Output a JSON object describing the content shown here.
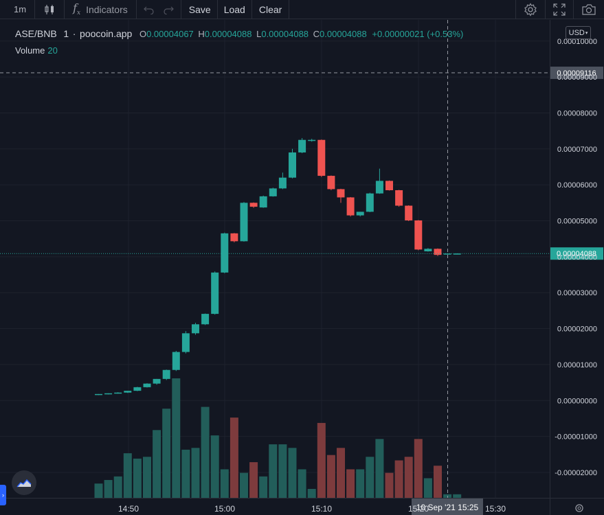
{
  "toolbar": {
    "interval": "1m",
    "indicators_label": "Indicators",
    "save_label": "Save",
    "load_label": "Load",
    "clear_label": "Clear"
  },
  "legend": {
    "symbol": "ASE/BNB",
    "interval": "1",
    "source": "poocoin.app",
    "o_label": "O",
    "o_value": "0.00004067",
    "h_label": "H",
    "h_value": "0.00004088",
    "l_label": "L",
    "l_value": "0.00004088",
    "c_label": "C",
    "c_value": "0.00004088",
    "change": "+0.00000021 (+0.53%)"
  },
  "volume_legend": {
    "label": "Volume",
    "length": "20"
  },
  "currency": "USD",
  "crosshair": {
    "price_label": "0.00009116",
    "time_label_date": "10 Sep '21",
    "time_label_time": "15:25"
  },
  "last_price_label": "0.00004088",
  "colors": {
    "up": "#26a69a",
    "down": "#ef5350",
    "vol_up": "#225e5a",
    "vol_down": "#7d3b3d",
    "bg": "#131722",
    "grid": "#1e222d"
  },
  "chart_data": {
    "type": "candlestick",
    "price_axis": {
      "ticks": [
        "0.00010000",
        "0.00009000",
        "0.00008000",
        "0.00007000",
        "0.00006000",
        "0.00005000",
        "0.00004000",
        "0.00003000",
        "0.00002000",
        "0.00001000",
        "0.00000000",
        "-0.00001000",
        "-0.00002000"
      ],
      "range": [
        -2.7e-05,
        0.0001
      ]
    },
    "time_axis": {
      "ticks": [
        "14:50",
        "15:00",
        "15:10",
        "15:20",
        "15:30"
      ]
    },
    "candles": [
      {
        "o": 1.6e-06,
        "h": 1.8e-06,
        "l": 1.5e-06,
        "c": 1.8e-06
      },
      {
        "o": 1.8e-06,
        "h": 2e-06,
        "l": 1.7e-06,
        "c": 2e-06
      },
      {
        "o": 2e-06,
        "h": 2.3e-06,
        "l": 1.9e-06,
        "c": 2.2e-06
      },
      {
        "o": 2.2e-06,
        "h": 2.7e-06,
        "l": 2.1e-06,
        "c": 2.7e-06
      },
      {
        "o": 2.7e-06,
        "h": 3.8e-06,
        "l": 2.6e-06,
        "c": 3.7e-06
      },
      {
        "o": 3.7e-06,
        "h": 4.8e-06,
        "l": 3.6e-06,
        "c": 4.7e-06
      },
      {
        "o": 4.7e-06,
        "h": 6e-06,
        "l": 4.4e-06,
        "c": 6e-06
      },
      {
        "o": 6e-06,
        "h": 8.6e-06,
        "l": 5.7e-06,
        "c": 8.5e-06
      },
      {
        "o": 8.5e-06,
        "h": 1.38e-05,
        "l": 8.2e-06,
        "c": 1.35e-05
      },
      {
        "o": 1.35e-05,
        "h": 1.93e-05,
        "l": 1.31e-05,
        "c": 1.87e-05
      },
      {
        "o": 1.87e-05,
        "h": 2.16e-05,
        "l": 1.83e-05,
        "c": 2.12e-05
      },
      {
        "o": 2.12e-05,
        "h": 2.42e-05,
        "l": 2.1e-05,
        "c": 2.41e-05
      },
      {
        "o": 2.41e-05,
        "h": 3.59e-05,
        "l": 2.39e-05,
        "c": 3.56e-05
      },
      {
        "o": 3.56e-05,
        "h": 4.67e-05,
        "l": 3.54e-05,
        "c": 4.65e-05
      },
      {
        "o": 4.65e-05,
        "h": 4.66e-05,
        "l": 4.4e-05,
        "c": 4.43e-05
      },
      {
        "o": 4.43e-05,
        "h": 5.52e-05,
        "l": 4.42e-05,
        "c": 5.5e-05
      },
      {
        "o": 5.5e-05,
        "h": 5.51e-05,
        "l": 5.36e-05,
        "c": 5.39e-05
      },
      {
        "o": 5.37e-05,
        "h": 5.7e-05,
        "l": 5.36e-05,
        "c": 5.68e-05
      },
      {
        "o": 5.68e-05,
        "h": 5.92e-05,
        "l": 5.67e-05,
        "c": 5.9e-05
      },
      {
        "o": 5.9e-05,
        "h": 6.34e-05,
        "l": 5.88e-05,
        "c": 6.2e-05
      },
      {
        "o": 6.2e-05,
        "h": 7e-05,
        "l": 6.18e-05,
        "c": 6.9e-05
      },
      {
        "o": 6.9e-05,
        "h": 7.3e-05,
        "l": 6.88e-05,
        "c": 7.25e-05
      },
      {
        "o": 7.22e-05,
        "h": 7.28e-05,
        "l": 7.2e-05,
        "c": 7.25e-05
      },
      {
        "o": 7.25e-05,
        "h": 7.26e-05,
        "l": 6.22e-05,
        "c": 6.25e-05
      },
      {
        "o": 6.25e-05,
        "h": 6.26e-05,
        "l": 5.85e-05,
        "c": 5.88e-05
      },
      {
        "o": 5.88e-05,
        "h": 5.89e-05,
        "l": 5.5e-05,
        "c": 5.65e-05
      },
      {
        "o": 5.65e-05,
        "h": 5.66e-05,
        "l": 5.12e-05,
        "c": 5.15e-05
      },
      {
        "o": 5.15e-05,
        "h": 5.25e-05,
        "l": 5.12e-05,
        "c": 5.25e-05
      },
      {
        "o": 5.25e-05,
        "h": 5.78e-05,
        "l": 5.24e-05,
        "c": 5.76e-05
      },
      {
        "o": 5.76e-05,
        "h": 6.45e-05,
        "l": 5.75e-05,
        "c": 6.11e-05
      },
      {
        "o": 6.11e-05,
        "h": 6.12e-05,
        "l": 5.84e-05,
        "c": 5.85e-05
      },
      {
        "o": 5.85e-05,
        "h": 5.86e-05,
        "l": 5.39e-05,
        "c": 5.42e-05
      },
      {
        "o": 5.42e-05,
        "h": 5.43e-05,
        "l": 4.99e-05,
        "c": 5.01e-05
      },
      {
        "o": 5.01e-05,
        "h": 5.02e-05,
        "l": 4.18e-05,
        "c": 4.2e-05
      },
      {
        "o": 4.15e-05,
        "h": 4.24e-05,
        "l": 4.14e-05,
        "c": 4.22e-05
      },
      {
        "o": 4.22e-05,
        "h": 4.23e-05,
        "l": 4.02e-05,
        "c": 4.05e-05
      },
      {
        "o": 4.067e-05,
        "h": 4.088e-05,
        "l": 4.088e-05,
        "c": 4.088e-05
      },
      {
        "o": 4.075e-05,
        "h": 4.09e-05,
        "l": 4.07e-05,
        "c": 4.088e-05
      }
    ],
    "volume": [
      8,
      10,
      12,
      25,
      22,
      23,
      38,
      50,
      67,
      27,
      28,
      51,
      35,
      16,
      45,
      14,
      20,
      12,
      30,
      30,
      28,
      16,
      5,
      42,
      24,
      28,
      16,
      16,
      23,
      33,
      14,
      21,
      23,
      33,
      11,
      18,
      2,
      2
    ],
    "volume_max": 67
  }
}
